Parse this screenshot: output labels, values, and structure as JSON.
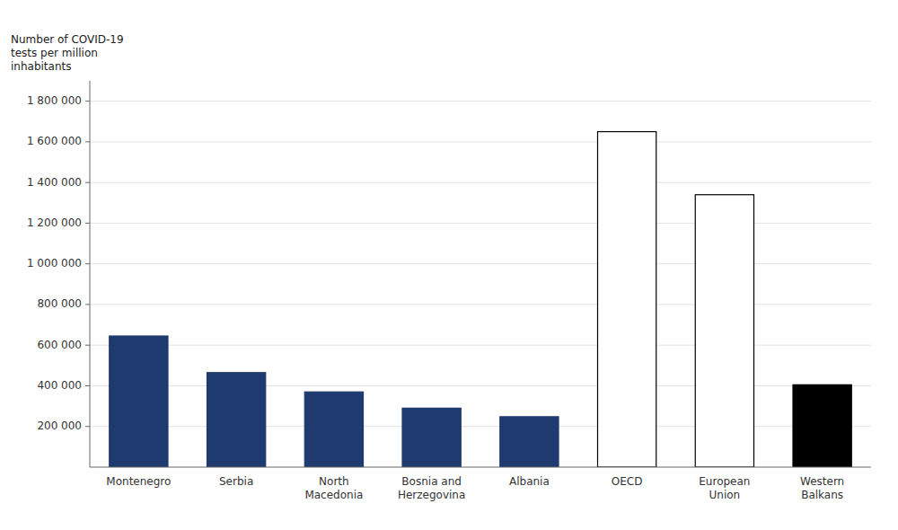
{
  "chart_data": {
    "type": "bar",
    "ylabel": "Number of COVID-19\ntests per million\ninhabitants",
    "categories": [
      "Montenegro",
      "Serbia",
      "North\nMacedonia",
      "Bosnia and\nHerzegovina",
      "Albania",
      "OECD",
      "European\nUnion",
      "Western\nBalkans"
    ],
    "values": [
      645000,
      465000,
      370000,
      290000,
      248000,
      1650000,
      1340000,
      405000
    ],
    "colors": [
      "#1f3a6e",
      "#1f3a6e",
      "#1f3a6e",
      "#1f3a6e",
      "#1f3a6e",
      "#ffffff",
      "#ffffff",
      "#000000"
    ],
    "ylim": [
      0,
      1900000
    ],
    "yticks": [
      {
        "value": 200000,
        "label": "200 000"
      },
      {
        "value": 400000,
        "label": "400 000"
      },
      {
        "value": 600000,
        "label": "600 000"
      },
      {
        "value": 800000,
        "label": "800 000"
      },
      {
        "value": 1000000,
        "label": "1 000 000"
      },
      {
        "value": 1200000,
        "label": "1 200 000"
      },
      {
        "value": 1400000,
        "label": "1 400 000"
      },
      {
        "value": 1600000,
        "label": "1 600 000"
      },
      {
        "value": 1800000,
        "label": "1 800 000"
      }
    ],
    "grid": true
  }
}
